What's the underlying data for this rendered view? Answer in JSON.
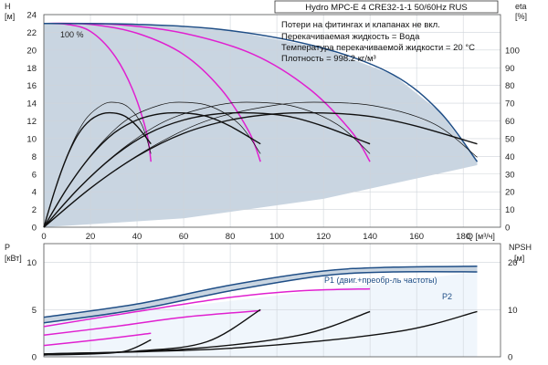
{
  "title": "Hydro MPC-E 4 CRE32-1-1 50/60Hz RUS",
  "notes": [
    "Потери на фитингах и клапанах не вкл.",
    "Перекачиваемая жидкость = Вода",
    "Температура перекачиваемой жидкости = 20 °C",
    "Плотность = 998.2 кг/м³"
  ],
  "colors": {
    "envelope": "#c9d5e1",
    "envelope_light": "#e6f0fa",
    "curve_black": "#111111",
    "curve_magenta": "#e020d0",
    "curve_blue": "#1f4e86",
    "grid": "#cfd4da"
  },
  "chart_data": [
    {
      "type": "line",
      "panel": "head",
      "ylabel_left": [
        "H",
        "[м]"
      ],
      "ylabel_right": [
        "eta",
        "[%]"
      ],
      "xlabel": "Q [м³/ч]",
      "xlim": [
        0,
        196
      ],
      "ylim": [
        0,
        24
      ],
      "xticks": [
        0,
        20,
        40,
        60,
        80,
        100,
        120,
        140,
        160,
        180
      ],
      "yticks": [
        0,
        2,
        4,
        6,
        8,
        10,
        12,
        14,
        16,
        18,
        20,
        22,
        24
      ],
      "eta_ticks": [
        0,
        10,
        20,
        30,
        40,
        50,
        60,
        70,
        80,
        90,
        100
      ],
      "eta_scale": 5,
      "speed_label": "100 %",
      "envelope": [
        [
          0,
          23
        ],
        [
          40,
          22.9
        ],
        [
          80,
          22.2
        ],
        [
          120,
          20.2
        ],
        [
          150,
          17.2
        ],
        [
          170,
          13
        ],
        [
          186,
          7.4
        ],
        [
          186,
          7
        ],
        [
          120,
          3.2
        ],
        [
          60,
          1
        ],
        [
          0,
          0
        ]
      ],
      "series": [
        {
          "name": "",
          "color": "magenta",
          "points": [
            [
              0,
              23
            ],
            [
              10,
              22.9
            ],
            [
              20,
              22.1
            ],
            [
              30,
              19.5
            ],
            [
              38,
              15.6
            ],
            [
              44,
              10.8
            ],
            [
              46,
              7.4
            ]
          ]
        },
        {
          "name": "",
          "color": "magenta",
          "points": [
            [
              0,
              23
            ],
            [
              20,
              22.9
            ],
            [
              40,
              21.9
            ],
            [
              60,
              19.5
            ],
            [
              76,
              15.6
            ],
            [
              88,
              10.8
            ],
            [
              93,
              7.4
            ]
          ]
        },
        {
          "name": "",
          "color": "magenta",
          "points": [
            [
              0,
              23
            ],
            [
              30,
              22.9
            ],
            [
              60,
              21.9
            ],
            [
              90,
              19.5
            ],
            [
              114,
              15.6
            ],
            [
              132,
              10.8
            ],
            [
              140,
              7.4
            ]
          ]
        },
        {
          "name": "",
          "color": "blue",
          "points": [
            [
              0,
              23
            ],
            [
              40,
              22.9
            ],
            [
              80,
              22.2
            ],
            [
              120,
              20.2
            ],
            [
              150,
              17.2
            ],
            [
              170,
              13
            ],
            [
              186,
              7.4
            ]
          ]
        },
        {
          "name": "",
          "color": "black",
          "points": [
            [
              0,
              0
            ],
            [
              5,
              4.4
            ],
            [
              10,
              8
            ],
            [
              15,
              10.6
            ],
            [
              20,
              12.1
            ],
            [
              25,
              12.8
            ],
            [
              30,
              12.9
            ],
            [
              35,
              12.5
            ],
            [
              40,
              11.4
            ],
            [
              46,
              9.4
            ]
          ]
        },
        {
          "name": "",
          "color": "black",
          "points": [
            [
              0,
              0
            ],
            [
              10,
              4.4
            ],
            [
              20,
              8
            ],
            [
              30,
              10.6
            ],
            [
              40,
              12.1
            ],
            [
              50,
              12.8
            ],
            [
              60,
              12.9
            ],
            [
              70,
              12.5
            ],
            [
              80,
              11.4
            ],
            [
              93,
              9.4
            ]
          ]
        },
        {
          "name": "",
          "color": "black",
          "points": [
            [
              0,
              0
            ],
            [
              15,
              4.4
            ],
            [
              30,
              8
            ],
            [
              45,
              10.6
            ],
            [
              60,
              12.1
            ],
            [
              75,
              12.8
            ],
            [
              90,
              12.9
            ],
            [
              105,
              12.5
            ],
            [
              120,
              11.4
            ],
            [
              140,
              9.4
            ]
          ]
        },
        {
          "name": "",
          "color": "black",
          "points": [
            [
              0,
              0
            ],
            [
              20,
              4.4
            ],
            [
              40,
              8
            ],
            [
              60,
              10.6
            ],
            [
              80,
              12.1
            ],
            [
              100,
              12.8
            ],
            [
              120,
              12.9
            ],
            [
              140,
              12.5
            ],
            [
              160,
              11.4
            ],
            [
              186,
              9.4
            ]
          ]
        },
        {
          "name": "",
          "color": "thin",
          "points": [
            [
              0,
              0
            ],
            [
              6,
              5.2
            ],
            [
              12,
              9.3
            ],
            [
              18,
              12.2
            ],
            [
              25,
              13.8
            ],
            [
              30,
              14.1
            ],
            [
              36,
              13.6
            ],
            [
              42,
              11.6
            ],
            [
              46,
              8.3
            ]
          ]
        },
        {
          "name": "",
          "color": "thin",
          "points": [
            [
              0,
              0
            ],
            [
              12,
              5.2
            ],
            [
              24,
              9.3
            ],
            [
              36,
              12.2
            ],
            [
              50,
              13.8
            ],
            [
              60,
              14.1
            ],
            [
              72,
              13.6
            ],
            [
              84,
              11.6
            ],
            [
              93,
              8.3
            ]
          ]
        },
        {
          "name": "",
          "color": "thin",
          "points": [
            [
              0,
              0
            ],
            [
              18,
              5.2
            ],
            [
              36,
              9.3
            ],
            [
              54,
              12.2
            ],
            [
              75,
              13.8
            ],
            [
              90,
              14.1
            ],
            [
              108,
              13.6
            ],
            [
              126,
              11.6
            ],
            [
              140,
              8.3
            ]
          ]
        },
        {
          "name": "",
          "color": "thin",
          "points": [
            [
              0,
              0
            ],
            [
              24,
              5.2
            ],
            [
              48,
              9.3
            ],
            [
              72,
              12.2
            ],
            [
              100,
              13.8
            ],
            [
              120,
              14.1
            ],
            [
              144,
              13.6
            ],
            [
              168,
              11.6
            ],
            [
              186,
              7.9
            ]
          ]
        }
      ]
    },
    {
      "type": "line",
      "panel": "power",
      "ylabel_left": [
        "P",
        "[кВт]"
      ],
      "ylabel_right": [
        "NPSH",
        "[м]"
      ],
      "xlim": [
        0,
        196
      ],
      "ylim": [
        0,
        12
      ],
      "yticks": [
        0,
        5,
        10
      ],
      "npsh_ticks": [
        0,
        10,
        20
      ],
      "npsh_scale": 2,
      "series": [
        {
          "name": "P1 (двиг.+преобр-ль частоты)",
          "color": "blue",
          "points": [
            [
              0,
              4.2
            ],
            [
              40,
              5.6
            ],
            [
              80,
              7.6
            ],
            [
              120,
              9.1
            ],
            [
              150,
              9.5
            ],
            [
              186,
              9.6
            ]
          ]
        },
        {
          "name": "P2",
          "color": "blue",
          "points": [
            [
              0,
              3.6
            ],
            [
              40,
              5
            ],
            [
              80,
              7
            ],
            [
              120,
              8.6
            ],
            [
              150,
              9
            ],
            [
              186,
              9
            ]
          ]
        },
        {
          "name": "",
          "color": "magenta",
          "points": [
            [
              0,
              1.2
            ],
            [
              23,
              1.8
            ],
            [
              46,
              2.5
            ]
          ]
        },
        {
          "name": "",
          "color": "magenta",
          "points": [
            [
              0,
              2.3
            ],
            [
              30,
              3.2
            ],
            [
              60,
              4.2
            ],
            [
              93,
              4.9
            ]
          ]
        },
        {
          "name": "",
          "color": "magenta",
          "points": [
            [
              0,
              3.2
            ],
            [
              40,
              4.8
            ],
            [
              80,
              6.3
            ],
            [
              110,
              7
            ],
            [
              140,
              7.2
            ]
          ]
        },
        {
          "name": "",
          "color": "black",
          "points": [
            [
              0,
              0.2
            ],
            [
              20,
              0.3
            ],
            [
              35,
              0.6
            ],
            [
              46,
              1.8
            ]
          ]
        },
        {
          "name": "",
          "color": "black",
          "points": [
            [
              0,
              0.2
            ],
            [
              40,
              0.6
            ],
            [
              70,
              1.6
            ],
            [
              93,
              5
            ]
          ]
        },
        {
          "name": "",
          "color": "black",
          "points": [
            [
              0,
              0.3
            ],
            [
              60,
              0.8
            ],
            [
              110,
              2.3
            ],
            [
              140,
              4.8
            ]
          ]
        },
        {
          "name": "",
          "color": "black",
          "points": [
            [
              0,
              0.3
            ],
            [
              80,
              0.9
            ],
            [
              150,
              2.6
            ],
            [
              186,
              4.8
            ]
          ]
        }
      ]
    }
  ]
}
